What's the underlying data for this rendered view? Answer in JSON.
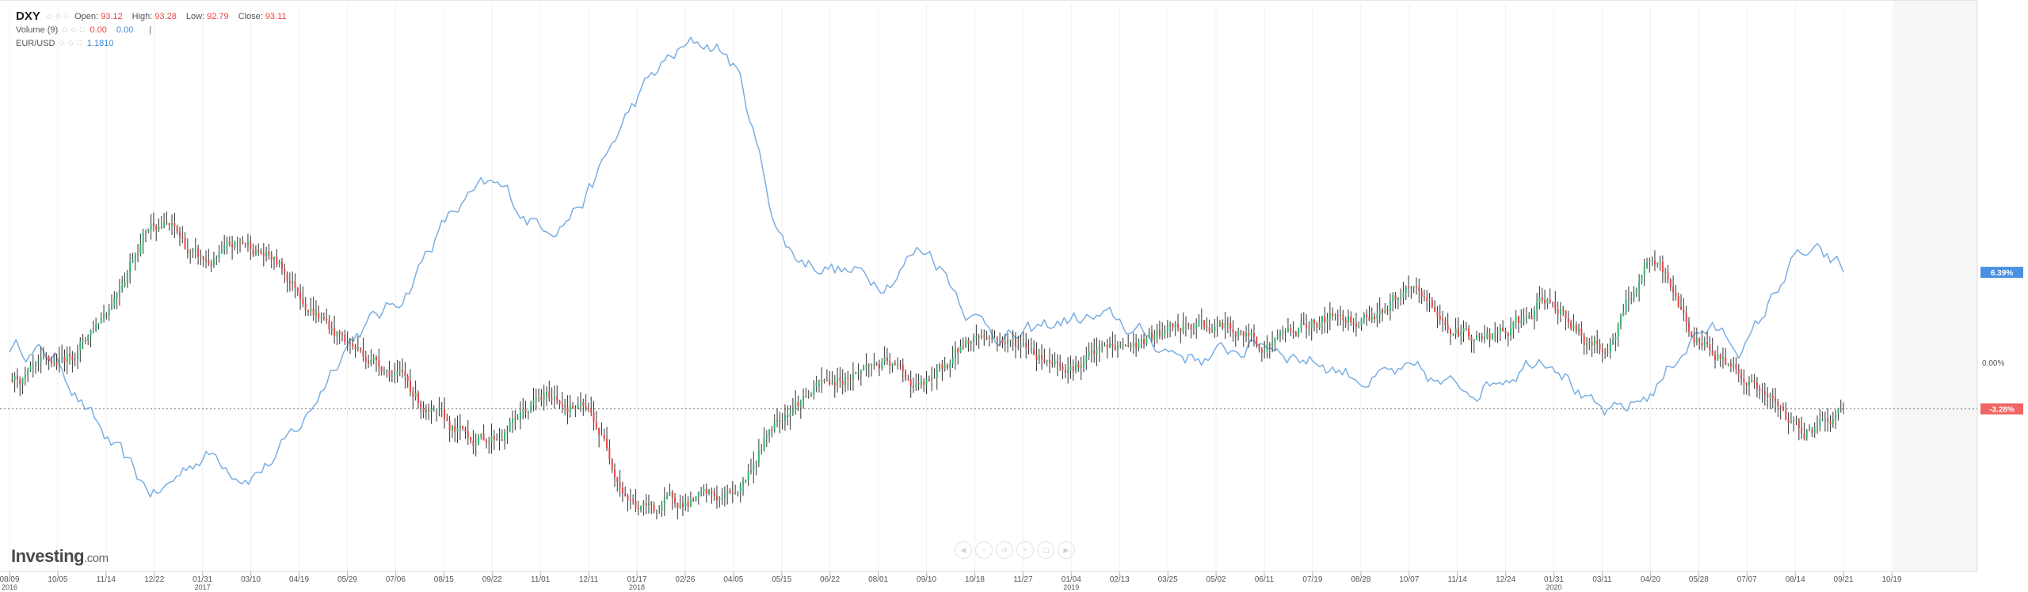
{
  "legend": {
    "symbol": "DXY",
    "open_label": "Open:",
    "open": "93.12",
    "high_label": "High:",
    "high": "93.28",
    "low_label": "Low:",
    "low": "92.79",
    "close_label": "Close:",
    "close": "93.11",
    "volume_label": "Volume (9)",
    "volume_value": "0.00",
    "volume_value2": "0.00",
    "volume_sep": "|",
    "pair_label": "EUR/USD",
    "pair_value": "1.1810",
    "controls": "◇ ◇ □"
  },
  "logo": {
    "main": "Investing",
    "suffix": ".com"
  },
  "nav_icons": [
    "chevron-left-icon",
    "zoom-out-icon",
    "reset-icon",
    "zoom-in-icon",
    "fullscreen-icon",
    "chevron-right-icon"
  ],
  "nav_glyphs": [
    "◀",
    "−",
    "↺",
    "+",
    "▢",
    "▶"
  ],
  "colors": {
    "up": "#2eb872",
    "down": "#e84545",
    "line": "#7aaee3",
    "badge_up": "#4a90e2",
    "badge_down": "#f06565"
  },
  "chart_data": {
    "type": "line",
    "title": "",
    "xlabel": "",
    "ylabel": "",
    "y_unit": "percent change",
    "ylim": [
      -13,
      24
    ],
    "grid": true,
    "x_ticks": [
      "08/09",
      "10/05",
      "11/14",
      "12/22",
      "01/31",
      "03/10",
      "04/19",
      "05/29",
      "07/06",
      "08/15",
      "09/22",
      "11/01",
      "12/11",
      "01/17",
      "02/26",
      "04/05",
      "05/15",
      "06/22",
      "08/01",
      "09/10",
      "10/18",
      "11/27",
      "01/04",
      "02/13",
      "03/25",
      "05/02",
      "06/11",
      "07/19",
      "08/28",
      "10/07",
      "11/14",
      "12/24",
      "01/31",
      "03/11",
      "04/20",
      "05/28",
      "07/07",
      "08/14",
      "09/21",
      "10/19"
    ],
    "x_tick_years": [
      {
        "tick": "08/09",
        "year": "2016"
      },
      {
        "tick": "01/31",
        "year": "2017"
      },
      {
        "tick": "01/17",
        "year": "2018"
      },
      {
        "tick": "01/04",
        "year": "2019"
      },
      {
        "tick": "01/31",
        "year": "2020"
      }
    ],
    "y_tick_labels": [
      {
        "value": 0,
        "label": "0.00%"
      }
    ],
    "end_badges": [
      {
        "series": "EUR/USD",
        "value": 6.39,
        "label": "6.39%"
      },
      {
        "series": "DXY",
        "value": -3.28,
        "label": "-3.28%"
      }
    ],
    "series": [
      {
        "name": "DXY",
        "style": "candlestick",
        "x": [
          "08/09/2016",
          "10/05/2016",
          "11/14/2016",
          "12/22/2016",
          "01/31/2017",
          "03/10/2017",
          "04/19/2017",
          "05/29/2017",
          "07/06/2017",
          "08/15/2017",
          "09/22/2017",
          "11/01/2017",
          "12/11/2017",
          "01/17/2018",
          "02/26/2018",
          "04/05/2018",
          "05/15/2018",
          "06/22/2018",
          "08/01/2018",
          "09/10/2018",
          "10/18/2018",
          "11/27/2018",
          "01/04/2019",
          "02/13/2019",
          "03/25/2019",
          "05/02/2019",
          "06/11/2019",
          "07/19/2019",
          "08/28/2019",
          "10/07/2019",
          "11/14/2019",
          "12/24/2019",
          "01/31/2020",
          "03/11/2020",
          "04/20/2020",
          "05/28/2020",
          "07/07/2020",
          "08/14/2020",
          "09/18/2020"
        ],
        "values": [
          -1.2,
          -0.4,
          4.0,
          10.2,
          7.0,
          8.2,
          5.2,
          1.4,
          -0.6,
          -4.6,
          -5.2,
          -2.8,
          -3.8,
          -10.0,
          -9.7,
          -9.3,
          -3.4,
          -1.5,
          -0.1,
          -1.6,
          1.8,
          1.2,
          0.2,
          1.0,
          1.9,
          2.5,
          1.6,
          2.9,
          3.4,
          4.6,
          2.2,
          1.9,
          4.1,
          1.0,
          6.5,
          1.6,
          -0.9,
          -4.6,
          -3.28
        ]
      },
      {
        "name": "EUR/USD",
        "style": "line",
        "x": [
          "08/09/2016",
          "10/05/2016",
          "11/14/2016",
          "12/22/2016",
          "01/31/2017",
          "03/10/2017",
          "04/19/2017",
          "05/29/2017",
          "07/06/2017",
          "08/15/2017",
          "09/22/2017",
          "11/01/2017",
          "12/11/2017",
          "01/17/2018",
          "02/26/2018",
          "04/05/2018",
          "05/15/2018",
          "06/22/2018",
          "08/01/2018",
          "09/10/2018",
          "10/18/2018",
          "11/27/2018",
          "01/04/2019",
          "02/13/2019",
          "03/25/2019",
          "05/02/2019",
          "06/11/2019",
          "07/19/2019",
          "08/28/2019",
          "10/07/2019",
          "11/14/2019",
          "12/24/2019",
          "01/31/2020",
          "03/11/2020",
          "04/20/2020",
          "05/28/2020",
          "07/07/2020",
          "08/14/2020",
          "09/18/2020"
        ],
        "values": [
          1.2,
          0.0,
          -5.5,
          -9.3,
          -6.5,
          -7.4,
          -4.8,
          1.7,
          4.2,
          9.8,
          12.0,
          10.0,
          12.3,
          18.5,
          22.0,
          21.0,
          9.0,
          7.0,
          6.0,
          8.0,
          3.5,
          1.8,
          3.0,
          2.5,
          1.0,
          0.5,
          1.4,
          0.4,
          -0.8,
          -1.2,
          -2.0,
          -0.5,
          0.8,
          -3.9,
          -2.2,
          2.3,
          1.5,
          7.2,
          6.39
        ]
      }
    ]
  }
}
